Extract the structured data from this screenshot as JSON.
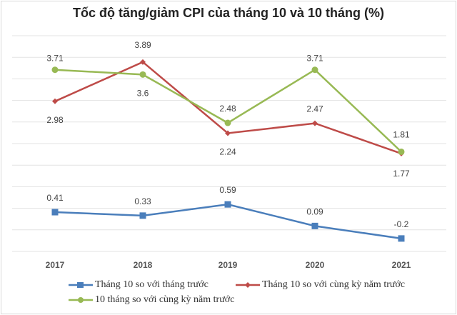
{
  "chart_data": {
    "type": "line",
    "title": "Tốc độ tăng/giảm CPI của tháng 10 và 10 tháng (%)",
    "categories": [
      "2017",
      "2018",
      "2019",
      "2020",
      "2021"
    ],
    "ylim": [
      -0.5,
      4.5
    ],
    "grid": true,
    "legend_position": "bottom",
    "series": [
      {
        "name": "Tháng 10 so với tháng trước",
        "color": "#4a7ebb",
        "marker": "square",
        "values": [
          0.41,
          0.33,
          0.59,
          0.09,
          -0.2
        ],
        "labels": [
          "0.41",
          "0.33",
          "0.59",
          "0.09",
          "-0.2"
        ]
      },
      {
        "name": "Tháng 10 so với cùng kỳ năm trước",
        "color": "#be4b48",
        "marker": "diamond",
        "values": [
          2.98,
          3.89,
          2.24,
          2.47,
          1.77
        ],
        "labels": [
          "2.98",
          "3.89",
          "2.24",
          "2.47",
          "1.77"
        ]
      },
      {
        "name": "10 tháng so với cùng kỳ năm trước",
        "color": "#98b954",
        "marker": "circle",
        "values": [
          3.71,
          3.6,
          2.48,
          3.71,
          1.81
        ],
        "labels": [
          "3.71",
          "3.6",
          "2.48",
          "3.71",
          "1.81"
        ]
      }
    ]
  }
}
